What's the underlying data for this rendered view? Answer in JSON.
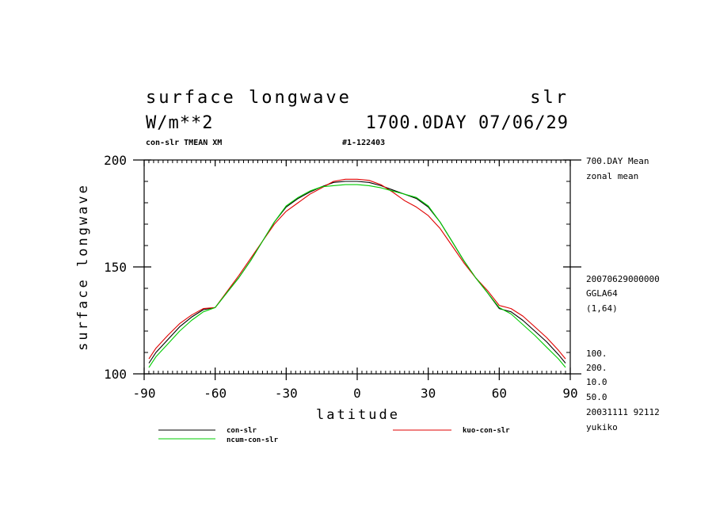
{
  "header": {
    "title_left": "surface longwave",
    "title_right": "slr",
    "units": "W/m**2",
    "time_line": "1700.0DAY 07/06/29",
    "run_info": "con-slr TMEAN XM",
    "run_id": "#1-122403"
  },
  "side_info": {
    "lines_top": [
      "700.DAY Mean",
      "zonal mean"
    ],
    "lines_mid": [
      "20070629000000",
      "GGLA64",
      "(1,64)"
    ],
    "lines_bottom": [
      "100.",
      "200.",
      "10.0",
      "50.0",
      "20031111  92112",
      "yukiko"
    ]
  },
  "chart_data": {
    "type": "line",
    "xlabel": "latitude",
    "ylabel": "surface longwave",
    "xlim": [
      -90,
      90
    ],
    "ylim": [
      100,
      200
    ],
    "xticks": [
      "-90",
      "-60",
      "-30",
      "0",
      "30",
      "60",
      "90"
    ],
    "yticks": [
      "100",
      "150",
      "200"
    ],
    "grid": false,
    "legend_position": "bottom",
    "x": [
      -88,
      -85,
      -80,
      -75,
      -70,
      -65,
      -60,
      -55,
      -50,
      -45,
      -40,
      -35,
      -30,
      -25,
      -20,
      -15,
      -10,
      -5,
      0,
      5,
      10,
      15,
      20,
      25,
      30,
      35,
      40,
      45,
      50,
      55,
      60,
      65,
      70,
      75,
      80,
      85,
      88
    ],
    "series": [
      {
        "name": "con-slr",
        "color": "#000000",
        "values": [
          105,
          110,
          116,
          122,
          126.5,
          130,
          131,
          138,
          145,
          153,
          162,
          171,
          178,
          182,
          185,
          187.5,
          189.5,
          190,
          190,
          189.5,
          188,
          186,
          184,
          182,
          178,
          171,
          162,
          153,
          145,
          138,
          130.5,
          129,
          125,
          120,
          115,
          109,
          105
        ]
      },
      {
        "name": "kuo-con-slr",
        "color": "#e00000",
        "values": [
          107,
          112,
          118,
          123.5,
          127.5,
          130.5,
          131,
          138.5,
          146,
          154,
          162,
          170,
          176,
          180,
          184,
          187,
          190,
          191,
          191,
          190.5,
          188.5,
          185,
          181,
          178,
          174,
          168,
          160,
          152,
          145,
          139,
          132,
          130.5,
          127,
          122,
          117,
          111,
          107
        ]
      },
      {
        "name": "ncum-con-slr",
        "color": "#00cc00",
        "values": [
          103,
          108,
          114,
          120,
          125,
          129,
          131,
          138,
          145,
          153,
          162,
          171,
          178.5,
          182.5,
          185.5,
          187.5,
          188,
          188.5,
          188.5,
          188,
          187,
          185.5,
          184,
          182.5,
          178.5,
          171,
          162,
          153,
          145,
          138,
          131,
          128,
          123,
          118,
          112.5,
          107,
          103
        ]
      }
    ]
  }
}
